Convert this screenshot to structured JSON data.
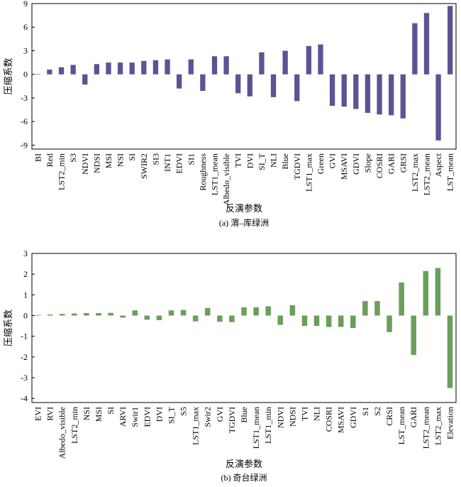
{
  "chart_data": [
    {
      "type": "bar",
      "ylabel": "压缩系数",
      "xlabel": "反演参数",
      "caption": "(a) 渭–库绿洲",
      "color": "#5b5393",
      "categories": [
        "BI",
        "Red",
        "LST2_min",
        "S3",
        "NDVI",
        "NDSI",
        "MSI",
        "NSI",
        "SI",
        "SWIR2",
        "SI3",
        "INT1",
        "EDVI",
        "SI1",
        "Roughness",
        "LST1_mean",
        "Albedo_visible",
        "TVI",
        "DVI",
        "SI_T",
        "NLI",
        "Blue",
        "TGDVI",
        "LST1_max",
        "Green",
        "GVI",
        "MSAVI",
        "GDVI",
        "Slope",
        "COSRI",
        "GARI",
        "GRSI",
        "LST2_max",
        "LST2_mean",
        "Aspect",
        "LST_mean"
      ],
      "values": [
        0.05,
        0.6,
        0.9,
        1.2,
        -1.3,
        1.3,
        1.5,
        1.5,
        1.5,
        1.7,
        1.8,
        1.9,
        -1.8,
        1.9,
        -2.1,
        2.3,
        2.3,
        -2.4,
        -2.8,
        2.8,
        -2.9,
        3.0,
        -3.4,
        3.6,
        3.8,
        -4.0,
        -4.1,
        -4.4,
        -4.9,
        -5.1,
        -5.2,
        -5.6,
        6.5,
        7.8,
        -8.4,
        8.7
      ],
      "ylim": [
        -9.5,
        9
      ],
      "yticks": [
        -9,
        -6,
        -3,
        0,
        3,
        6,
        9
      ]
    },
    {
      "type": "bar",
      "ylabel": "压缩系数",
      "xlabel": "反演参数",
      "caption": "(b) 奇台绿洲",
      "color": "#6a9f5a",
      "categories": [
        "EVI",
        "RVI",
        "Albedo_visible",
        "LST2_min",
        "NSI",
        "MSI",
        "SI",
        "ARVI",
        "Swir1",
        "EDVI",
        "DVI",
        "SI_T",
        "S5",
        "LST1_max",
        "Swir2",
        "GVI",
        "TGDVI",
        "Blue",
        "LST1_mean",
        "LST1_min",
        "NDVI",
        "NDSI",
        "TVI",
        "NLI",
        "COSRI",
        "MSAVI",
        "GDVI",
        "S1",
        "S2",
        "CRSI",
        "LST_mean",
        "GARI",
        "LST2_mean",
        "LST2_max",
        "Elevation"
      ],
      "values": [
        0.03,
        0.05,
        0.08,
        0.1,
        0.12,
        0.12,
        0.13,
        -0.1,
        0.25,
        -0.2,
        -0.22,
        0.25,
        0.27,
        -0.28,
        0.37,
        -0.3,
        -0.32,
        0.4,
        0.4,
        0.45,
        -0.45,
        0.5,
        -0.5,
        -0.5,
        -0.55,
        -0.55,
        -0.6,
        0.7,
        0.7,
        -0.8,
        1.6,
        -1.9,
        2.15,
        2.3,
        -3.5
      ],
      "ylim": [
        -4.2,
        3
      ],
      "yticks": [
        -4,
        -3,
        -2,
        -1,
        0,
        1,
        2,
        3
      ]
    }
  ]
}
